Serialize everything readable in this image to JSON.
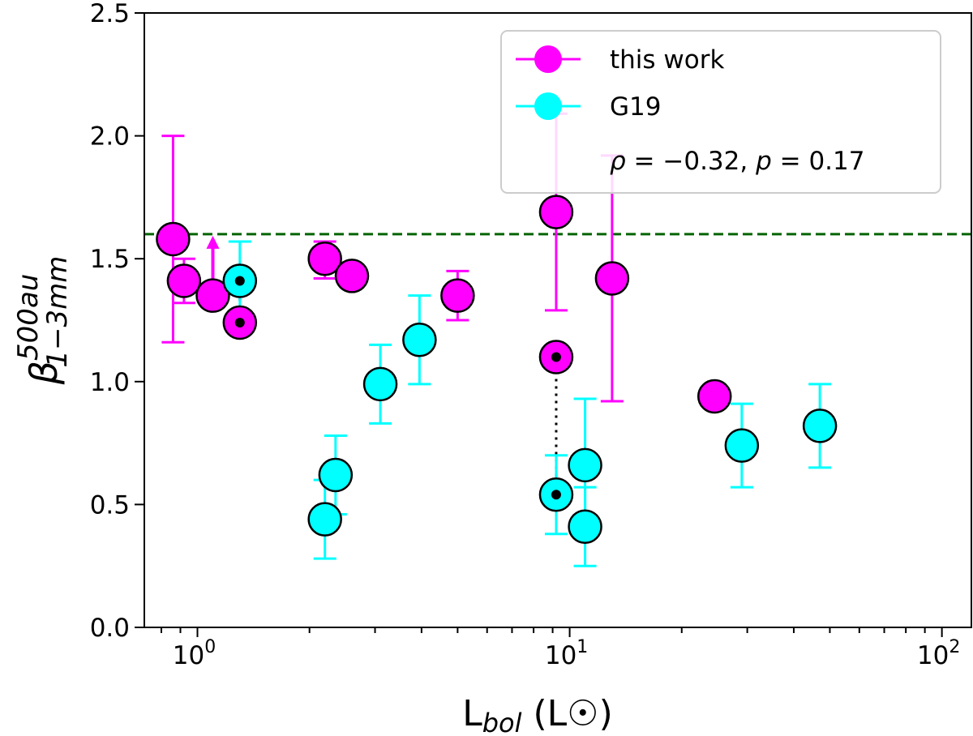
{
  "chart_data": {
    "type": "scatter",
    "xscale": "log",
    "xlim": [
      0.72,
      120
    ],
    "ylim": [
      0.0,
      2.5
    ],
    "xlabel": {
      "main": "L",
      "sub": "bol",
      "unit": " (L☉)"
    },
    "ylabel": {
      "symbol": "β",
      "superscript": "500au",
      "subscript": "1−3mm"
    },
    "x_ticks": [
      {
        "value": 1,
        "base": "10",
        "exp": "0"
      },
      {
        "value": 10,
        "base": "10",
        "exp": "1"
      },
      {
        "value": 100,
        "base": "10",
        "exp": "2"
      }
    ],
    "y_ticks": [
      {
        "value": 0.0,
        "label": "0.0"
      },
      {
        "value": 0.5,
        "label": "0.5"
      },
      {
        "value": 1.0,
        "label": "1.0"
      },
      {
        "value": 1.5,
        "label": "1.5"
      },
      {
        "value": 2.0,
        "label": "2.0"
      },
      {
        "value": 2.5,
        "label": "2.5"
      }
    ],
    "reference_line": {
      "y": 1.6,
      "color": "#006400",
      "style": "dashed"
    },
    "series": [
      {
        "name": "this work",
        "color": "#ff00ff",
        "points": [
          {
            "x": 0.86,
            "y": 1.58,
            "ylo": 1.16,
            "yhi": 2.0
          },
          {
            "x": 0.92,
            "y": 1.41,
            "ylo": 1.32,
            "yhi": 1.5
          },
          {
            "x": 1.1,
            "y": 1.35,
            "lower_limit": true
          },
          {
            "x": 1.3,
            "y": 1.24,
            "marked": true
          },
          {
            "x": 2.2,
            "y": 1.5,
            "ylo": 1.42,
            "yhi": 1.57
          },
          {
            "x": 2.6,
            "y": 1.43
          },
          {
            "x": 5.0,
            "y": 1.35,
            "ylo": 1.25,
            "yhi": 1.45
          },
          {
            "x": 9.2,
            "y": 1.69,
            "ylo": 1.29,
            "yhi": 2.09
          },
          {
            "x": 9.2,
            "y": 1.1,
            "marked": true
          },
          {
            "x": 13.0,
            "y": 1.42,
            "ylo": 0.92,
            "yhi": 1.92
          },
          {
            "x": 24.5,
            "y": 0.94
          }
        ]
      },
      {
        "name": "G19",
        "color": "#00ffff",
        "points": [
          {
            "x": 1.3,
            "y": 1.41,
            "ylo": 1.25,
            "yhi": 1.57,
            "marked": true
          },
          {
            "x": 2.2,
            "y": 0.44,
            "ylo": 0.28,
            "yhi": 0.6
          },
          {
            "x": 2.35,
            "y": 0.62,
            "ylo": 0.46,
            "yhi": 0.78
          },
          {
            "x": 3.1,
            "y": 0.99,
            "ylo": 0.83,
            "yhi": 1.15
          },
          {
            "x": 3.95,
            "y": 1.17,
            "ylo": 0.99,
            "yhi": 1.35
          },
          {
            "x": 9.2,
            "y": 0.54,
            "ylo": 0.38,
            "yhi": 0.7,
            "marked": true
          },
          {
            "x": 11.0,
            "y": 0.66,
            "ylo": 0.4,
            "yhi": 0.93
          },
          {
            "x": 11.0,
            "y": 0.41,
            "ylo": 0.25,
            "yhi": 0.57
          },
          {
            "x": 29.0,
            "y": 0.74,
            "ylo": 0.57,
            "yhi": 0.91
          },
          {
            "x": 47.0,
            "y": 0.82,
            "ylo": 0.65,
            "yhi": 0.99
          }
        ]
      }
    ],
    "links": [
      {
        "x1": 1.3,
        "y1": 1.24,
        "x2": 1.3,
        "y2": 1.41
      },
      {
        "x1": 9.2,
        "y1": 1.1,
        "x2": 9.2,
        "y2": 0.54
      }
    ],
    "annotation": {
      "lhs": "ρ",
      "rho": " = −0.32, ",
      "p_lhs": "p",
      "p": " = 0.17"
    },
    "legend_location": "top-right"
  }
}
